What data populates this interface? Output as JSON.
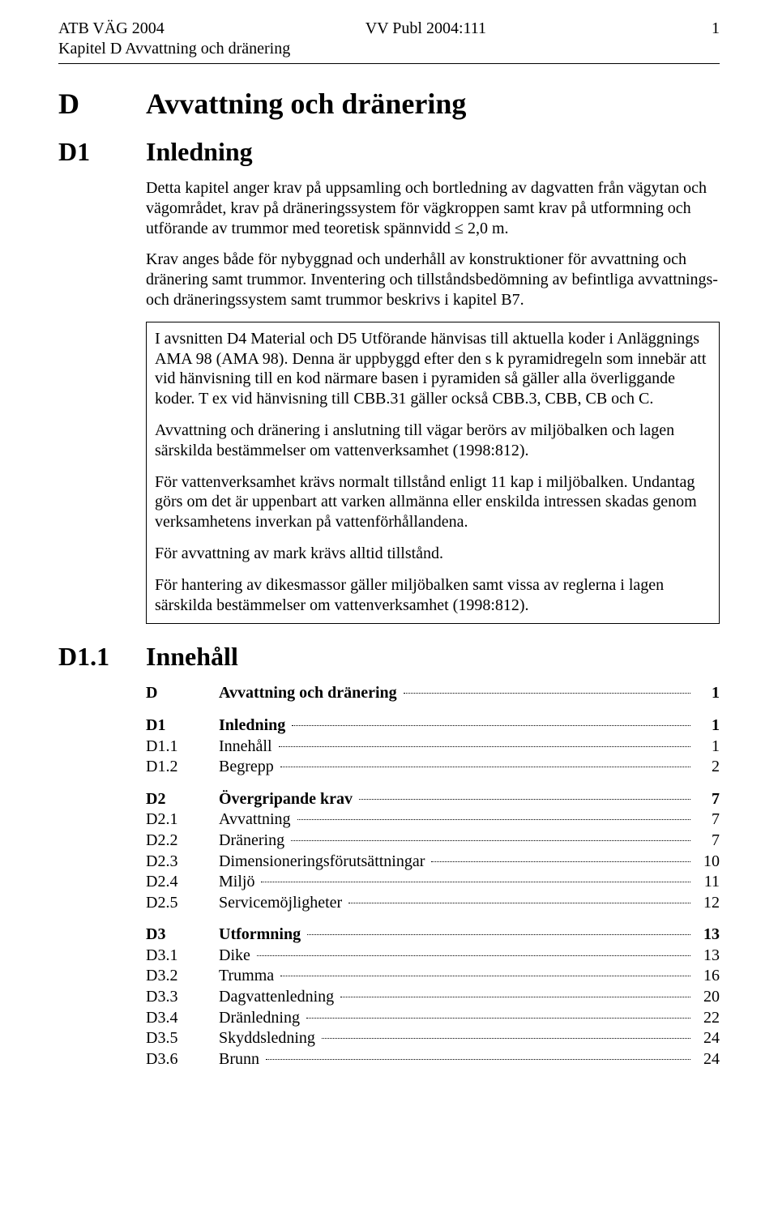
{
  "header": {
    "left": "ATB VÄG 2004",
    "center": "VV Publ 2004:111",
    "page": "1",
    "sub": "Kapitel D Avvattning och dränering"
  },
  "h_d": {
    "marker": "D",
    "title": "Avvattning och dränering"
  },
  "h_d1": {
    "marker": "D1",
    "title": "Inledning"
  },
  "h_d11": {
    "marker": "D1.1",
    "title": "Innehåll"
  },
  "intro": {
    "p1": "Detta kapitel anger krav på uppsamling och bortledning av dagvatten från vägytan och vägområdet, krav på dräneringssystem för vägkroppen samt krav på utformning och utförande av trummor med teoretisk spännvidd ≤ 2,0 m.",
    "p2": "Krav anges både för nybyggnad och underhåll av konstruktioner för avvattning och dränering samt trummor. Inventering och tillståndsbedömning av befintliga avvattnings- och dräneringssystem samt trummor beskrivs i kapitel B7."
  },
  "box": {
    "p1": "I avsnitten D4 Material och D5 Utförande hänvisas till aktuella koder i Anläggnings AMA 98 (AMA 98). Denna är uppbyggd efter den s k pyramidregeln som innebär att vid hänvisning till en kod närmare basen i pyramiden så gäller alla överliggande koder. T ex vid hänvisning till CBB.31 gäller också CBB.3, CBB, CB och C.",
    "p2": "Avvattning och dränering i anslutning till vägar berörs av miljöbalken och lagen särskilda bestämmelser om vattenverksamhet (1998:812).",
    "p3": "För vattenverksamhet krävs normalt tillstånd enligt 11 kap i miljöbalken. Undantag görs om det är uppenbart att varken allmänna eller enskilda intressen skadas genom verksamhetens inverkan på vattenförhållandena.",
    "p4": "För avvattning av mark krävs alltid tillstånd.",
    "p5": "För hantering av dikesmassor gäller miljöbalken samt vissa av reglerna i lagen särskilda bestämmelser om vattenverksamhet (1998:812)."
  },
  "toc": [
    [
      {
        "code": "D",
        "title": "Avvattning och dränering",
        "page": "1",
        "bold": true
      }
    ],
    [
      {
        "code": "D1",
        "title": "Inledning",
        "page": "1",
        "bold": true
      },
      {
        "code": "D1.1",
        "title": "Innehåll",
        "page": "1",
        "bold": false
      },
      {
        "code": "D1.2",
        "title": "Begrepp",
        "page": "2",
        "bold": false
      }
    ],
    [
      {
        "code": "D2",
        "title": "Övergripande krav",
        "page": "7",
        "bold": true
      },
      {
        "code": "D2.1",
        "title": "Avvattning",
        "page": "7",
        "bold": false
      },
      {
        "code": "D2.2",
        "title": "Dränering",
        "page": "7",
        "bold": false
      },
      {
        "code": "D2.3",
        "title": "Dimensioneringsförutsättningar",
        "page": "10",
        "bold": false
      },
      {
        "code": "D2.4",
        "title": "Miljö",
        "page": "11",
        "bold": false
      },
      {
        "code": "D2.5",
        "title": "Servicemöjligheter",
        "page": "12",
        "bold": false
      }
    ],
    [
      {
        "code": "D3",
        "title": "Utformning",
        "page": "13",
        "bold": true
      },
      {
        "code": "D3.1",
        "title": "Dike",
        "page": "13",
        "bold": false
      },
      {
        "code": "D3.2",
        "title": "Trumma",
        "page": "16",
        "bold": false
      },
      {
        "code": "D3.3",
        "title": "Dagvattenledning",
        "page": "20",
        "bold": false
      },
      {
        "code": "D3.4",
        "title": "Dränledning",
        "page": "22",
        "bold": false
      },
      {
        "code": "D3.5",
        "title": "Skyddsledning",
        "page": "24",
        "bold": false
      },
      {
        "code": "D3.6",
        "title": "Brunn",
        "page": "24",
        "bold": false
      }
    ]
  ]
}
